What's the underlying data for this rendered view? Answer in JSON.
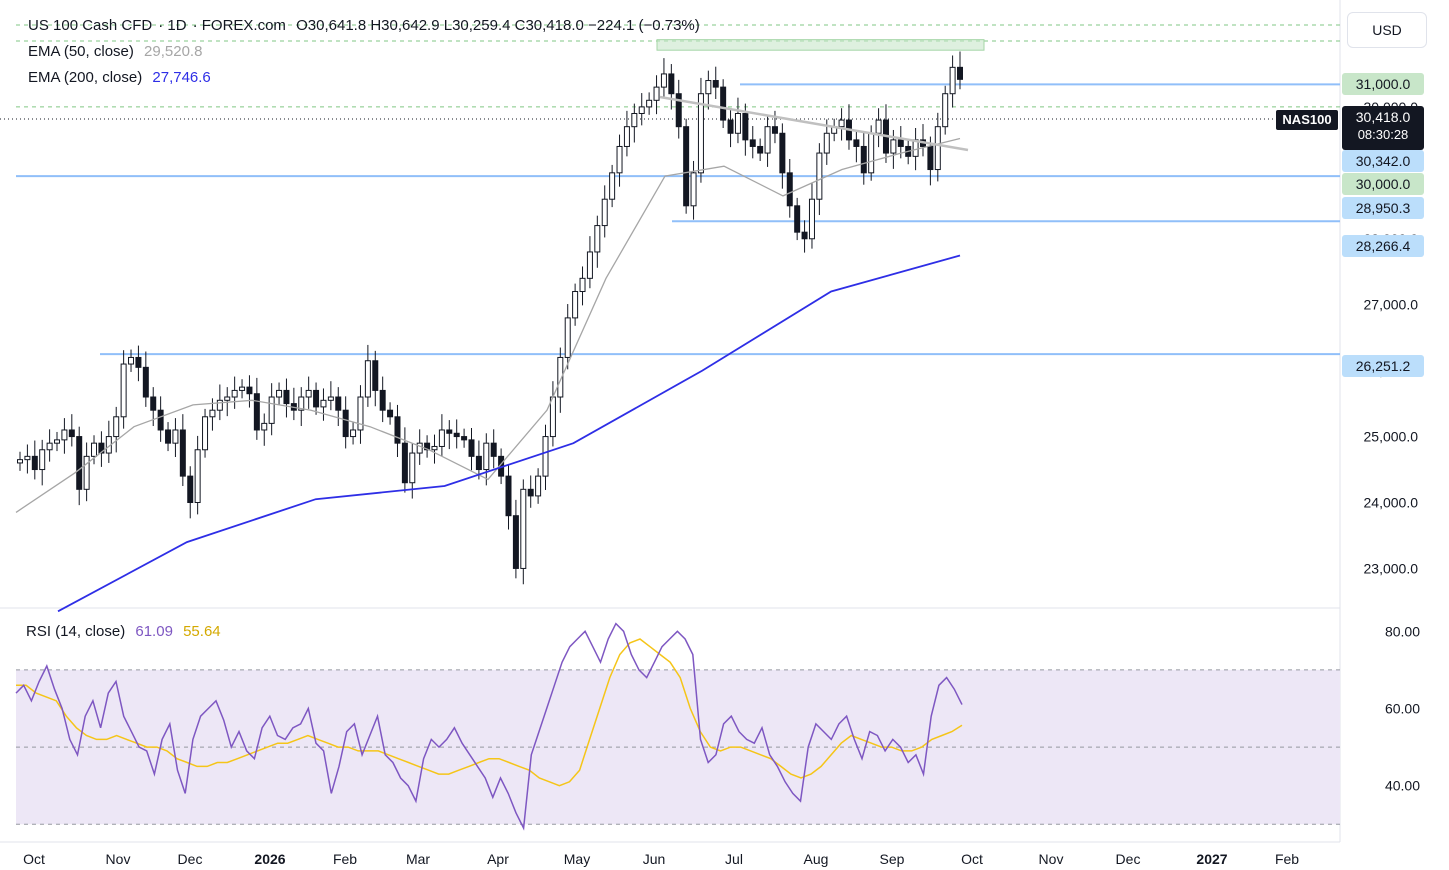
{
  "header": {
    "symbol": "US 100 Cash CFD",
    "interval": "1D",
    "source": "FOREX.com",
    "ohlc": "O30,641.8  H30,642.9  L30,259.4  C30,418.0  −224.1 (−0.73%)",
    "ema50_label": "EMA (50, close)",
    "ema50_value": "29,520.8",
    "ema200_label": "EMA (200, close)",
    "ema200_value": "27,746.6",
    "rsi_label": "RSI (14, close)",
    "rsi_value": "61.09",
    "rsi_ma_value": "55.64",
    "currency": "USD"
  },
  "price_axis": {
    "symbol_badge": "NAS100",
    "last_price": "30,418.0",
    "countdown": "08:30:28",
    "levels": [
      {
        "label": "31,000.0",
        "kind": "zone"
      },
      {
        "label": "30,342.0",
        "kind": "line"
      },
      {
        "label": "30,000.0",
        "kind": "zone"
      },
      {
        "label": "28,950.3",
        "kind": "line"
      },
      {
        "label": "28,266.4",
        "kind": "line"
      },
      {
        "label": "26,251.2",
        "kind": "line"
      }
    ]
  },
  "colors": {
    "up": "#131722",
    "down": "#131722",
    "ema50": "#a6a6a6",
    "ema200": "#2e2ee6",
    "rsi": "#7e57c2",
    "rsi_ma": "#f5c518",
    "rsi_band": "#ede7f6",
    "hline": "#90bff9",
    "zone": "#c8e6c9"
  },
  "chart_data": [
    {
      "type": "candlestick",
      "title": "US 100 Cash CFD · 1D · FOREX.com",
      "x_ticks": [
        "Oct",
        "Nov",
        "Dec",
        "2026",
        "Feb",
        "Mar",
        "Apr",
        "May",
        "Jun",
        "Jul",
        "Aug",
        "Sep",
        "Oct",
        "Nov",
        "Dec",
        "2027",
        "Feb"
      ],
      "y_ticks": [
        23000,
        24000,
        25000,
        26000,
        27000,
        28000,
        30000,
        31000
      ],
      "ylim": [
        22400,
        31500
      ],
      "series_close": [
        24650,
        24700,
        24500,
        24800,
        24900,
        24950,
        25100,
        25000,
        24200,
        24700,
        24900,
        24750,
        25000,
        25300,
        26100,
        26200,
        26050,
        25600,
        25400,
        25100,
        24900,
        25100,
        24400,
        24000,
        24800,
        25300,
        25400,
        25550,
        25600,
        25700,
        25750,
        25650,
        25100,
        25200,
        25600,
        25700,
        25500,
        25400,
        25600,
        25700,
        25450,
        25550,
        25600,
        25400,
        25000,
        25100,
        25600,
        26150,
        25700,
        25400,
        25300,
        24900,
        24300,
        24750,
        24900,
        24800,
        24850,
        25100,
        25050,
        25000,
        24950,
        24700,
        24500,
        24900,
        24700,
        24400,
        23800,
        23000,
        24200,
        24100,
        24400,
        25000,
        25600,
        26200,
        26800,
        27200,
        27400,
        27800,
        28200,
        28600,
        29000,
        29400,
        29700,
        29900,
        30000,
        30100,
        30300,
        30500,
        30200,
        29700,
        28500,
        29000,
        30200,
        30400,
        30300,
        29800,
        29600,
        29900,
        29500,
        29400,
        29300,
        29700,
        29600,
        29000,
        28500,
        28100,
        28000,
        28600,
        29300,
        29600,
        29700,
        29800,
        29500,
        29400,
        29000,
        29600,
        29800,
        29300,
        29500,
        29400,
        29250,
        29500,
        29400,
        29050,
        29700,
        30200,
        30600,
        30418
      ],
      "ema50": [
        23850,
        24450,
        25150,
        25480,
        25550,
        25400,
        25150,
        24800,
        24350,
        25400,
        27400,
        28950,
        29100,
        28650,
        29050,
        29300,
        29520
      ],
      "ema200": [
        22350,
        23400,
        24050,
        24250,
        24900,
        26000,
        27200,
        27746
      ]
    },
    {
      "type": "line",
      "title": "RSI (14, close)",
      "y_ticks": [
        40,
        60,
        80
      ],
      "ylim": [
        28,
        85
      ],
      "band": [
        30,
        70
      ],
      "midline": 50,
      "rsi": [
        64,
        66,
        62,
        67,
        71,
        65,
        60,
        52,
        48,
        58,
        62,
        55,
        64,
        67,
        58,
        54,
        50,
        49,
        43,
        52,
        56,
        44,
        38,
        52,
        58,
        60,
        62,
        57,
        50,
        54,
        49,
        47,
        55,
        58,
        53,
        52,
        55,
        56,
        60,
        51,
        49,
        38,
        45,
        54,
        56,
        48,
        53,
        58,
        48,
        46,
        42,
        40,
        36,
        47,
        52,
        50,
        52,
        55,
        51,
        48,
        45,
        42,
        37,
        42,
        38,
        33,
        29,
        48,
        54,
        60,
        66,
        72,
        76,
        78,
        80,
        76,
        72,
        78,
        82,
        80,
        74,
        70,
        68,
        72,
        76,
        78,
        80,
        78,
        74,
        52,
        46,
        48,
        56,
        58,
        54,
        52,
        51,
        55,
        48,
        45,
        41,
        38,
        36,
        50,
        56,
        54,
        52,
        56,
        58,
        52,
        47,
        54,
        53,
        49,
        52,
        50,
        46,
        48,
        43,
        58,
        66,
        68,
        65,
        61
      ],
      "rsi_ma": [
        66,
        66,
        64,
        63,
        62,
        58,
        55,
        53,
        52,
        52,
        53,
        52,
        51,
        50,
        50,
        49,
        47,
        46,
        45,
        45,
        46,
        46,
        47,
        48,
        49,
        50,
        51,
        51,
        52,
        53,
        52,
        51,
        50,
        50,
        49,
        49,
        49,
        48,
        47,
        46,
        45,
        44,
        43,
        43,
        44,
        45,
        46,
        47,
        47,
        46,
        45,
        44,
        42,
        41,
        40,
        41,
        44,
        52,
        60,
        68,
        74,
        77,
        78,
        76,
        74,
        72,
        68,
        60,
        54,
        50,
        49,
        50,
        50,
        49,
        48,
        47,
        45,
        43,
        42,
        43,
        45,
        48,
        51,
        53,
        52,
        51,
        50,
        50,
        49,
        49,
        50,
        52,
        53,
        54,
        55.64
      ]
    }
  ]
}
